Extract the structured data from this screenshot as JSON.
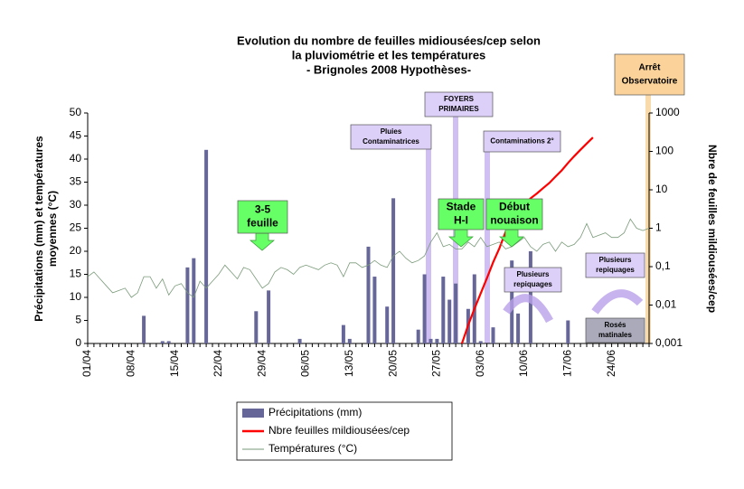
{
  "chart_data": {
    "type": "bar-line",
    "title": [
      "Evolution du nombre de feuilles midiousées/cep selon",
      "la pluviométrie et les températures",
      "- Brignoles 2008 Hypothèses-"
    ],
    "y_label": [
      "Précipitations (mm) et températures",
      "moyennes (°C)"
    ],
    "y2_label": "Nbre de feuilles mildiousées/cep",
    "categories": [
      "01/04",
      null,
      null,
      null,
      null,
      null,
      null,
      "08/04",
      null,
      null,
      null,
      null,
      null,
      null,
      "15/04",
      null,
      null,
      null,
      null,
      null,
      null,
      "22/04",
      null,
      null,
      null,
      null,
      null,
      null,
      "29/04",
      null,
      null,
      null,
      null,
      null,
      null,
      "06/05",
      null,
      null,
      null,
      null,
      null,
      null,
      "13/05",
      null,
      null,
      null,
      null,
      null,
      null,
      "20/05",
      null,
      null,
      null,
      null,
      null,
      null,
      "27/05",
      null,
      null,
      null,
      null,
      null,
      null,
      "03/06",
      null,
      null,
      null,
      null,
      null,
      null,
      "10/06",
      null,
      null,
      null,
      null,
      null,
      null,
      "17/06",
      null,
      null,
      null,
      null,
      null,
      null,
      "24/06",
      null,
      null,
      null,
      null,
      null,
      null
    ],
    "series": [
      {
        "name": "Précipitations (mm)",
        "type": "bar",
        "color": "#666699",
        "axis": "y",
        "values": [
          0,
          0,
          0,
          0,
          0,
          0,
          0,
          0,
          0,
          6,
          0,
          0,
          0.5,
          0.5,
          0,
          0,
          16.5,
          18.5,
          0,
          42,
          0,
          0,
          0,
          0,
          0,
          0,
          0,
          7,
          0,
          11.5,
          0,
          0,
          0,
          0,
          1,
          0,
          0,
          0,
          0,
          0,
          0,
          4,
          1,
          0,
          0,
          21,
          14.5,
          0,
          8,
          31.5,
          0,
          0,
          0,
          3,
          15,
          1,
          1,
          14.5,
          9.5,
          13,
          0,
          7.5,
          15,
          0.5,
          0,
          3.5,
          0,
          0,
          18,
          6.5,
          0,
          20,
          0,
          0,
          0,
          0,
          0,
          5,
          0,
          0,
          0,
          0,
          0,
          0,
          0,
          0,
          0,
          0,
          0,
          0,
          0
        ]
      },
      {
        "name": "Nbre feuilles mildiousées/cep",
        "type": "line",
        "color": "#ff0000",
        "axis": "y2",
        "values": [
          null,
          null,
          null,
          null,
          null,
          null,
          null,
          null,
          null,
          null,
          null,
          null,
          null,
          null,
          null,
          null,
          null,
          null,
          null,
          null,
          null,
          null,
          null,
          null,
          null,
          null,
          null,
          null,
          null,
          null,
          null,
          null,
          null,
          null,
          null,
          null,
          null,
          null,
          null,
          null,
          null,
          null,
          null,
          null,
          null,
          null,
          null,
          null,
          null,
          null,
          null,
          null,
          null,
          null,
          null,
          null,
          null,
          null,
          null,
          null,
          0.001,
          0.003,
          0.008,
          0.02,
          0.05,
          0.13,
          0.3,
          0.8,
          1.5,
          2.5,
          4,
          6,
          8,
          11,
          15,
          22,
          32,
          50,
          75,
          110,
          160,
          230,
          null,
          null,
          null,
          null,
          null,
          null,
          null,
          null,
          null
        ]
      },
      {
        "name": "Températures (°C)",
        "type": "line",
        "color": "#7a9a7a",
        "axis": "y",
        "values": [
          14.5,
          15.5,
          14,
          12.5,
          11,
          11.5,
          12,
          10,
          11,
          14.5,
          14.5,
          12,
          14,
          10.5,
          12.5,
          13,
          11,
          10,
          13.5,
          12,
          13.5,
          15,
          17,
          15.5,
          14,
          16.5,
          16,
          14,
          12,
          13,
          15.5,
          16.5,
          16,
          15,
          16.5,
          17,
          16.5,
          16,
          17,
          17.5,
          17,
          14.5,
          17.5,
          17.5,
          16.5,
          17,
          18,
          17,
          16.5,
          19,
          20,
          18.5,
          17.5,
          18,
          19,
          22,
          24,
          21,
          21.5,
          20.5,
          20.5,
          22,
          21,
          23,
          21,
          21.5,
          22,
          20.5,
          21,
          22,
          23,
          21,
          20,
          21.5,
          22,
          20,
          22,
          21,
          21.5,
          23,
          26,
          23,
          23.5,
          24,
          23,
          23,
          24,
          27,
          25,
          24.5,
          25
        ]
      }
    ],
    "ylim": [
      0,
      50
    ],
    "yticks": [
      0,
      5,
      10,
      15,
      20,
      25,
      30,
      35,
      40,
      45,
      50
    ],
    "y2lim": [
      0.001,
      1000
    ],
    "y2log": true,
    "y2ticks": [
      {
        "value": 0.001,
        "label": "0,001"
      },
      {
        "value": 0.01,
        "label": "0,01"
      },
      {
        "value": 0.1,
        "label": "0,1"
      },
      1,
      10,
      100,
      1000
    ],
    "annotations": [
      {
        "lines": [
          "3-5",
          "feuille"
        ]
      },
      {
        "lines": [
          "Pluies",
          "Contaminatrices"
        ]
      },
      {
        "lines": [
          "FOYERS",
          "PRIMAIRES"
        ]
      },
      {
        "lines": [
          "Stade",
          "H-I"
        ]
      },
      {
        "lines": [
          "Début",
          "nouaison"
        ]
      },
      {
        "lines": [
          "Contaminations 2°"
        ]
      },
      {
        "lines": [
          "Plusieurs",
          "repiquages"
        ]
      },
      {
        "lines": [
          "Plusieurs",
          "repiquages"
        ]
      },
      {
        "lines": [
          "Rosés",
          "matinales"
        ]
      },
      {
        "lines": [
          "Arrêt",
          "Observatoire"
        ]
      }
    ]
  }
}
